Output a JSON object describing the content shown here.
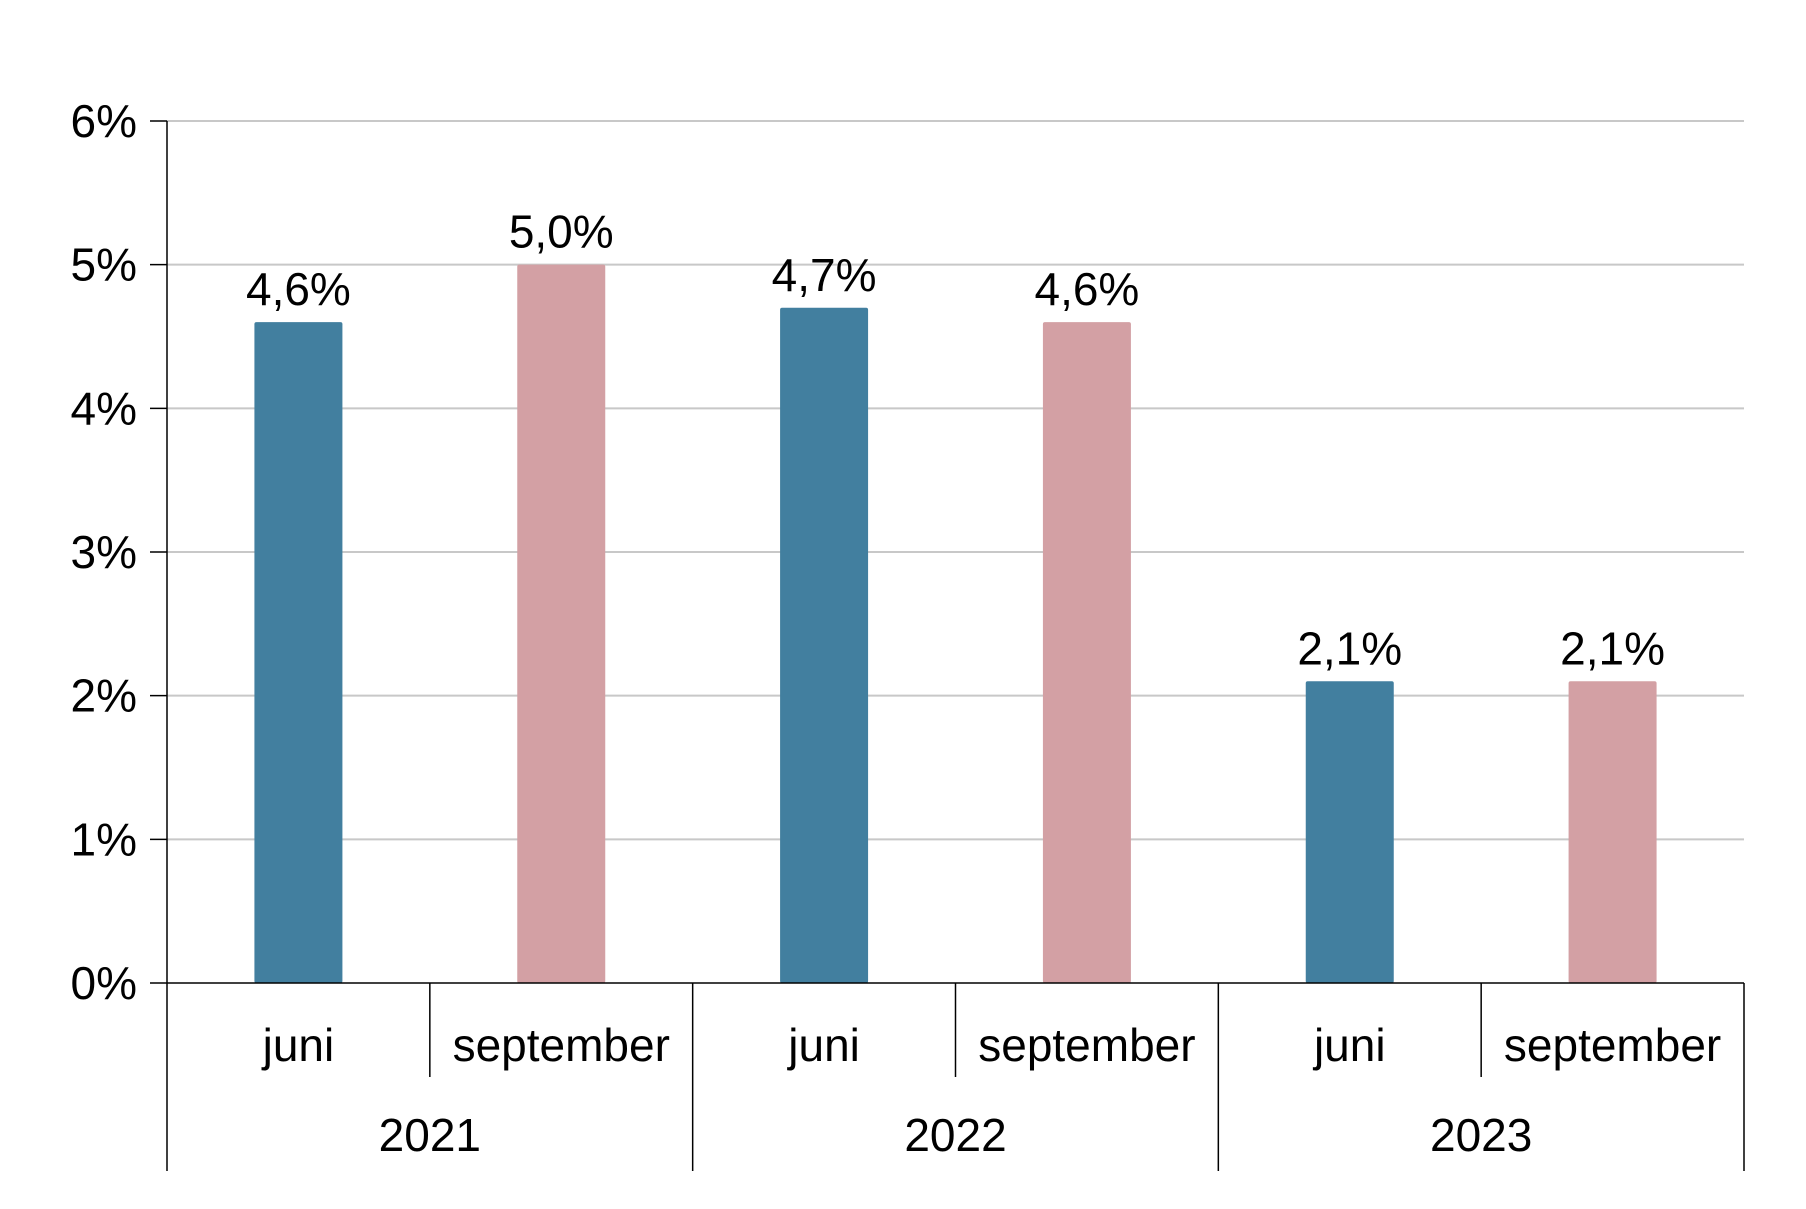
{
  "chart_data": {
    "type": "bar",
    "title": "",
    "xlabel": "",
    "ylabel": "",
    "ylim": [
      0,
      6
    ],
    "y_ticks": [
      "0%",
      "1%",
      "2%",
      "3%",
      "4%",
      "5%",
      "6%"
    ],
    "grid": true,
    "groups": [
      {
        "year": "2021",
        "bars": [
          {
            "category": "juni",
            "value": 4.6,
            "label": "4,6%",
            "color": "#427f9f"
          },
          {
            "category": "september",
            "value": 5.0,
            "label": "5,0%",
            "color": "#d3a0a4"
          }
        ]
      },
      {
        "year": "2022",
        "bars": [
          {
            "category": "juni",
            "value": 4.7,
            "label": "4,7%",
            "color": "#427f9f"
          },
          {
            "category": "september",
            "value": 4.6,
            "label": "4,6%",
            "color": "#d3a0a4"
          }
        ]
      },
      {
        "year": "2023",
        "bars": [
          {
            "category": "juni",
            "value": 2.1,
            "label": "2,1%",
            "color": "#427f9f"
          },
          {
            "category": "september",
            "value": 2.1,
            "label": "2,1%",
            "color": "#d3a0a4"
          }
        ]
      }
    ]
  }
}
